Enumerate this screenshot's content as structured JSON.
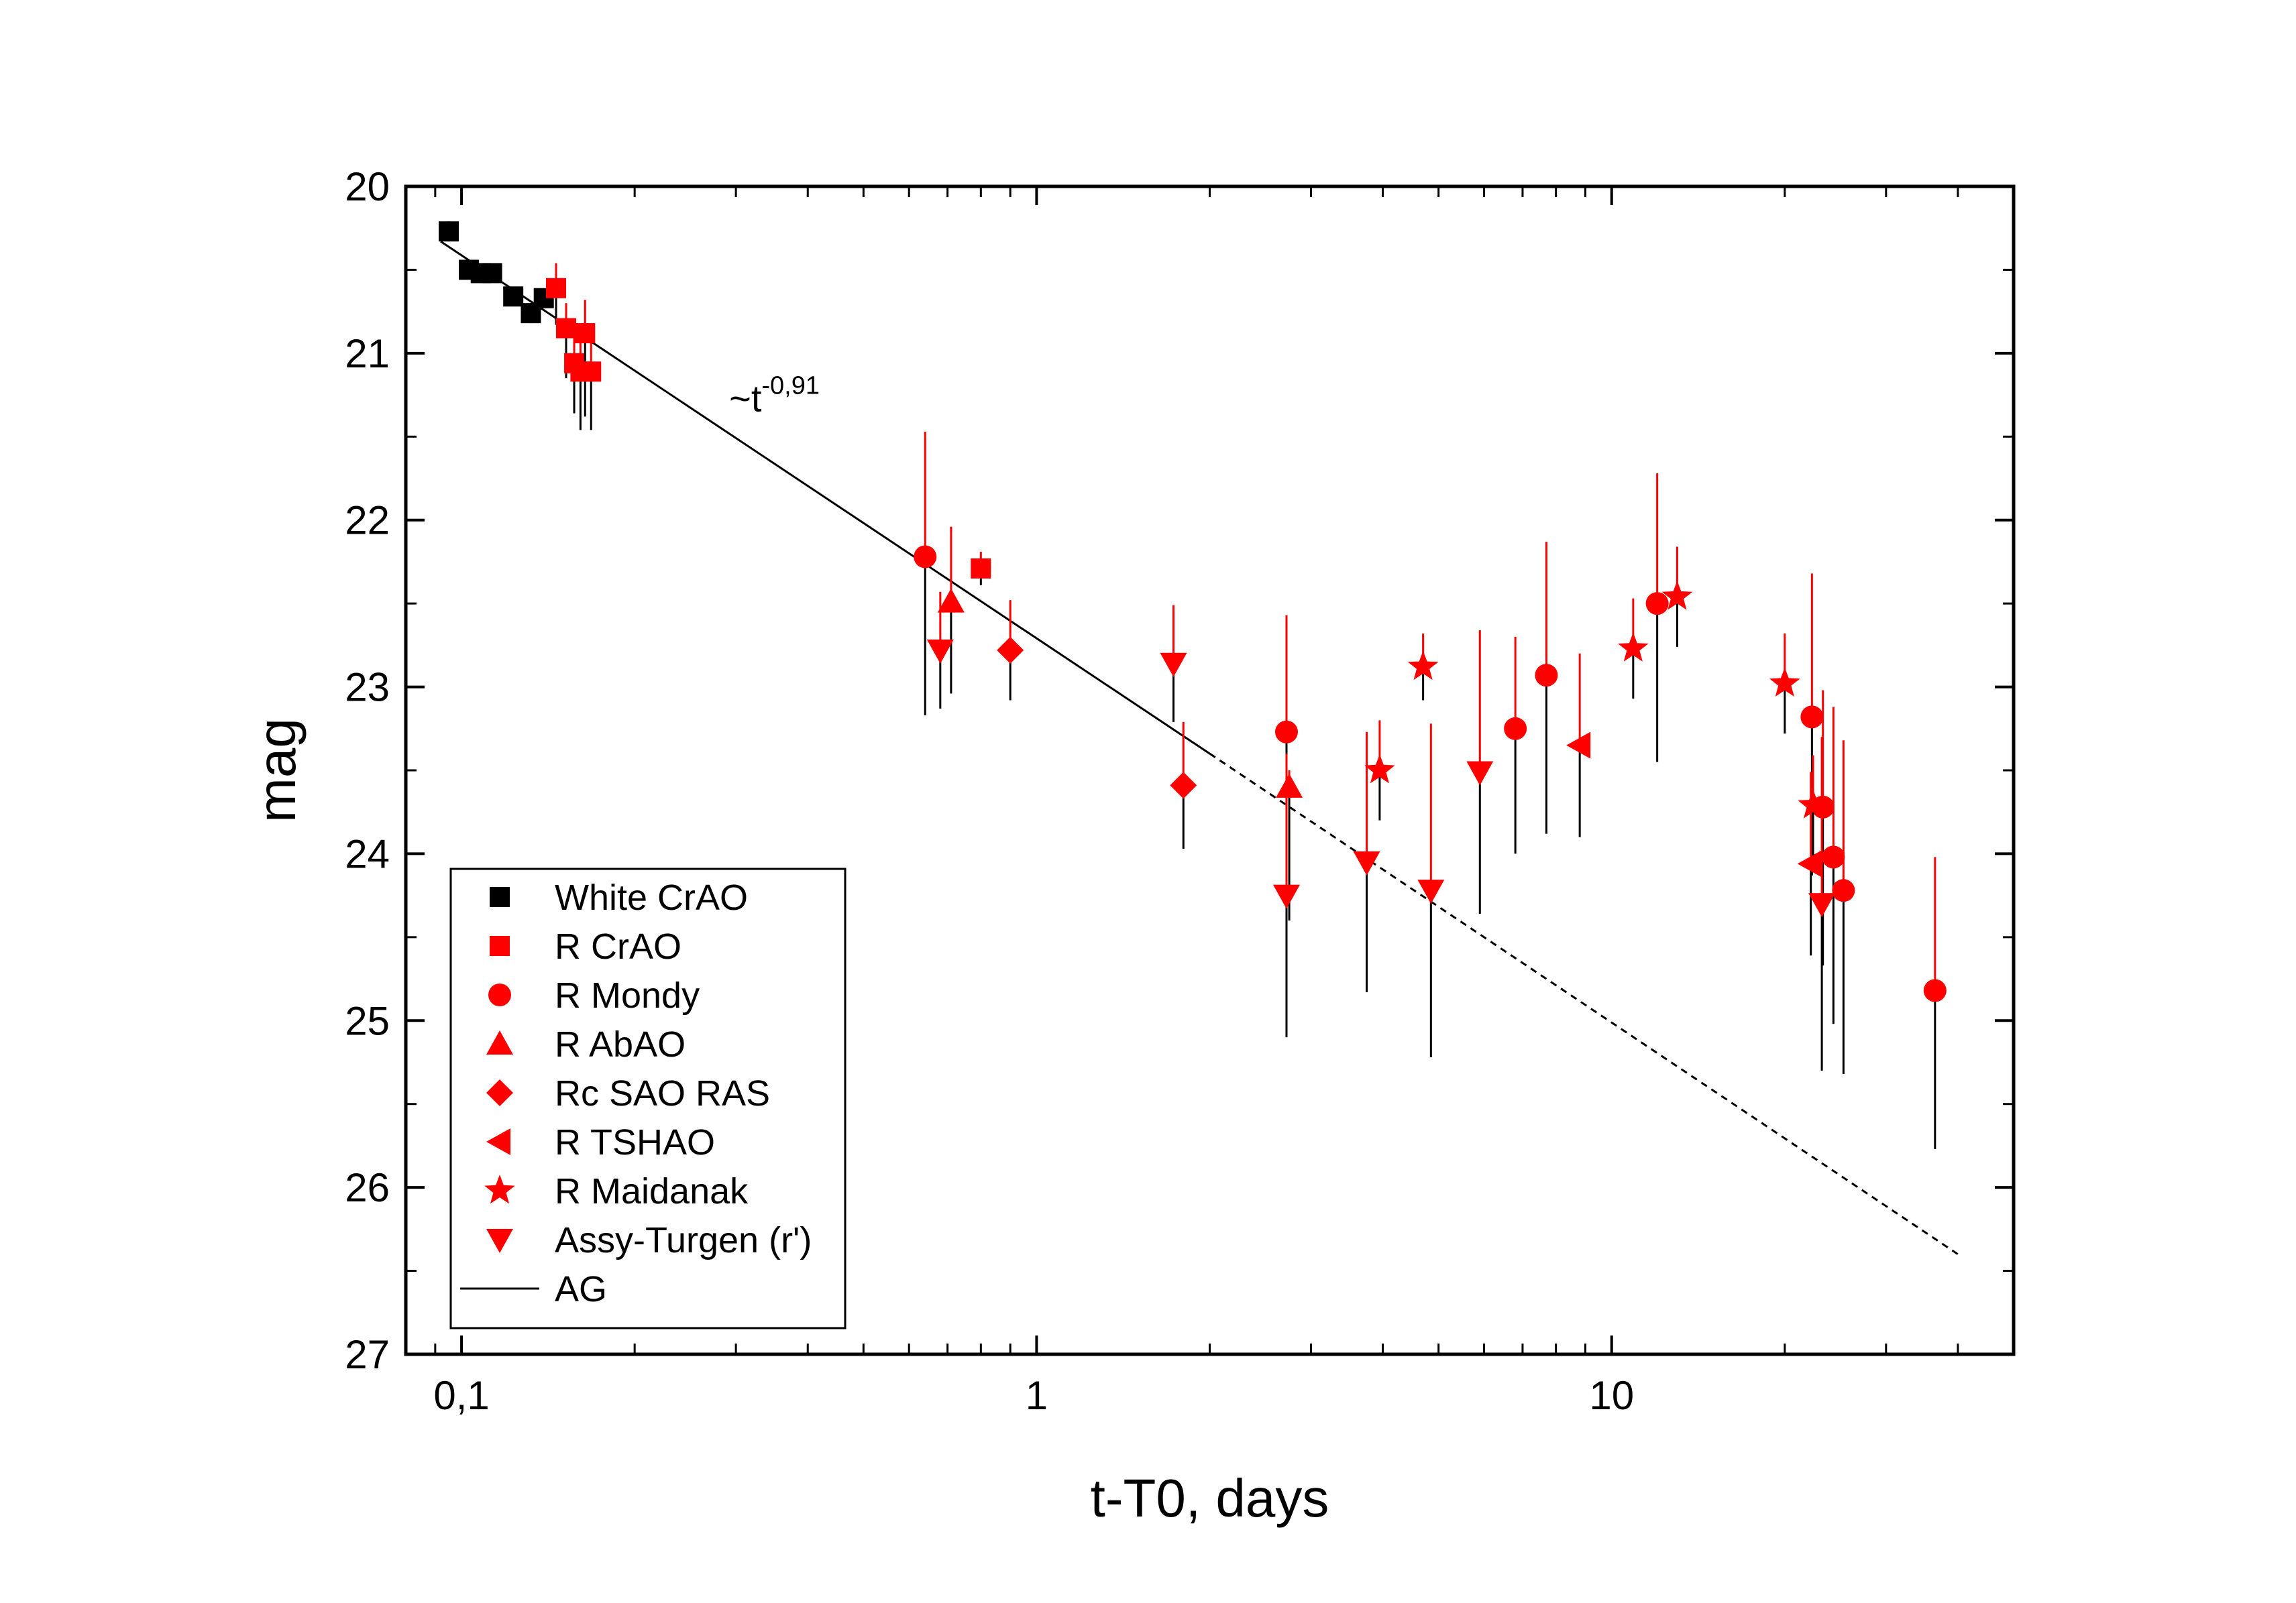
{
  "chart_data": {
    "type": "scatter",
    "title": "",
    "xlabel": "t-T0, days",
    "ylabel": "mag",
    "x_scale": "log",
    "xlim": [
      0.08,
      50
    ],
    "ylim": [
      27,
      20
    ],
    "y_inverted": true,
    "x_tick_labels": [
      {
        "value": 0.1,
        "label": "0,1"
      },
      {
        "value": 1,
        "label": "1"
      },
      {
        "value": 10,
        "label": "10"
      }
    ],
    "y_tick_labels": [
      {
        "value": 20,
        "label": "20"
      },
      {
        "value": 21,
        "label": "21"
      },
      {
        "value": 22,
        "label": "22"
      },
      {
        "value": 23,
        "label": "23"
      },
      {
        "value": 24,
        "label": "24"
      },
      {
        "value": 25,
        "label": "25"
      },
      {
        "value": 26,
        "label": "26"
      },
      {
        "value": 27,
        "label": "27"
      }
    ],
    "grid": false,
    "legend_position": "bottom-left",
    "annotation": {
      "base": "~t",
      "exponent": "-0,91",
      "x": 0.3,
      "y": 21.3
    },
    "fit_line": {
      "name": "AG",
      "slope_note": "~t^-0,91",
      "solid": [
        [
          0.092,
          20.33
        ],
        [
          2.0,
          23.4
        ]
      ],
      "dashed": [
        [
          2.0,
          23.4
        ],
        [
          40,
          26.4
        ]
      ]
    },
    "series": [
      {
        "name": "White CrAO",
        "marker": "square",
        "color": "#000000",
        "points": [
          {
            "x": 0.095,
            "y": 20.27,
            "err": 0.06
          },
          {
            "x": 0.103,
            "y": 20.5,
            "err": 0.04
          },
          {
            "x": 0.108,
            "y": 20.52,
            "err": 0.04
          },
          {
            "x": 0.113,
            "y": 20.52,
            "err": 0.04
          },
          {
            "x": 0.123,
            "y": 20.66,
            "err": 0.05
          },
          {
            "x": 0.132,
            "y": 20.76,
            "err": 0.06
          },
          {
            "x": 0.139,
            "y": 20.67,
            "err": 0.05
          }
        ]
      },
      {
        "name": "R CrAO",
        "marker": "square",
        "color": "#ff0000",
        "points": [
          {
            "x": 0.146,
            "y": 20.61,
            "err_up": 0.15,
            "err_down": 0.22
          },
          {
            "x": 0.152,
            "y": 20.85,
            "err_up": 0.15,
            "err_down": 0.3
          },
          {
            "x": 0.157,
            "y": 21.06,
            "err_up": 0.2,
            "err_down": 0.3
          },
          {
            "x": 0.161,
            "y": 21.11,
            "err_up": 0.2,
            "err_down": 0.35
          },
          {
            "x": 0.164,
            "y": 20.88,
            "err_up": 0.2,
            "err_down": 0.5
          },
          {
            "x": 0.168,
            "y": 21.11,
            "err_up": 0.2,
            "err_down": 0.35
          },
          {
            "x": 0.8,
            "y": 22.29,
            "err": 0.1
          }
        ]
      },
      {
        "name": "R Mondy",
        "marker": "circle",
        "color": "#ff0000",
        "points": [
          {
            "x": 0.64,
            "y": 22.22,
            "err_up": 0.75,
            "err_down": 0.95
          },
          {
            "x": 2.72,
            "y": 23.27,
            "err_up": 0.7,
            "err_down": 0.45
          },
          {
            "x": 6.8,
            "y": 23.25,
            "err_up": 0.55,
            "err_down": 0.75
          },
          {
            "x": 7.7,
            "y": 22.93,
            "err_up": 0.8,
            "err_down": 0.95
          },
          {
            "x": 12.0,
            "y": 22.5,
            "err_up": 0.78,
            "err_down": 0.95
          },
          {
            "x": 22.3,
            "y": 23.18,
            "err_up": 0.86,
            "err_down": 0.95
          },
          {
            "x": 23.3,
            "y": 23.72,
            "err_up": 0.7,
            "err_down": 0.95
          },
          {
            "x": 24.3,
            "y": 24.02,
            "err_up": 0.9,
            "err_down": 1.0
          },
          {
            "x": 25.3,
            "y": 24.22,
            "err_up": 0.9,
            "err_down": 1.1
          },
          {
            "x": 36.5,
            "y": 24.82,
            "err_up": 0.8,
            "err_down": 0.95
          }
        ]
      },
      {
        "name": "R AbAO",
        "marker": "triangle-up",
        "color": "#ff0000",
        "points": [
          {
            "x": 0.71,
            "y": 22.49,
            "err_up": 0.45,
            "err_down": 0.55
          },
          {
            "x": 2.75,
            "y": 23.6,
            "err_up": 0.1,
            "err_down": 0.8
          }
        ]
      },
      {
        "name": "Rc SAO RAS",
        "marker": "diamond",
        "color": "#ff0000",
        "points": [
          {
            "x": 0.9,
            "y": 22.78,
            "err": 0.3
          },
          {
            "x": 1.8,
            "y": 23.59,
            "err": 0.38
          }
        ]
      },
      {
        "name": "R TSHAO",
        "marker": "triangle-left",
        "color": "#ff0000",
        "points": [
          {
            "x": 8.8,
            "y": 23.35,
            "err": 0.55
          },
          {
            "x": 22.2,
            "y": 24.06,
            "err": 0.55
          }
        ]
      },
      {
        "name": "R Maidanak",
        "marker": "star",
        "color": "#ff0000",
        "points": [
          {
            "x": 3.95,
            "y": 23.5,
            "err": 0.3
          },
          {
            "x": 4.7,
            "y": 22.88,
            "err": 0.2
          },
          {
            "x": 10.9,
            "y": 22.77,
            "err": 0.3
          },
          {
            "x": 13.0,
            "y": 22.46,
            "err": 0.3
          },
          {
            "x": 20.0,
            "y": 22.98,
            "err": 0.3
          },
          {
            "x": 22.4,
            "y": 23.71,
            "err": 0.3
          }
        ]
      },
      {
        "name": "Assy-Turgen (r')",
        "marker": "triangle-down",
        "color": "#ff0000",
        "points": [
          {
            "x": 0.68,
            "y": 22.78,
            "err": 0.35
          },
          {
            "x": 1.73,
            "y": 22.86,
            "err": 0.35
          },
          {
            "x": 2.72,
            "y": 24.25,
            "err": 0.85
          },
          {
            "x": 3.75,
            "y": 24.05,
            "err": 0.78
          },
          {
            "x": 4.85,
            "y": 24.22,
            "err": 1.0
          },
          {
            "x": 5.9,
            "y": 23.51,
            "err": 0.85
          },
          {
            "x": 23.2,
            "y": 24.3,
            "err": 1.0
          }
        ]
      }
    ]
  },
  "legend": {
    "items": [
      {
        "label": "White CrAO",
        "marker": "square",
        "color": "#000000"
      },
      {
        "label": "R CrAO",
        "marker": "square",
        "color": "#ff0000"
      },
      {
        "label": "R Mondy",
        "marker": "circle",
        "color": "#ff0000"
      },
      {
        "label": "R AbAO",
        "marker": "triangle-up",
        "color": "#ff0000"
      },
      {
        "label": "Rc SAO RAS",
        "marker": "diamond",
        "color": "#ff0000"
      },
      {
        "label": "R TSHAO",
        "marker": "triangle-left",
        "color": "#ff0000"
      },
      {
        "label": "R Maidanak",
        "marker": "star",
        "color": "#ff0000"
      },
      {
        "label": "Assy-Turgen (r')",
        "marker": "triangle-down",
        "color": "#ff0000"
      },
      {
        "label": "AG",
        "marker": "line",
        "color": "#000000"
      }
    ]
  }
}
